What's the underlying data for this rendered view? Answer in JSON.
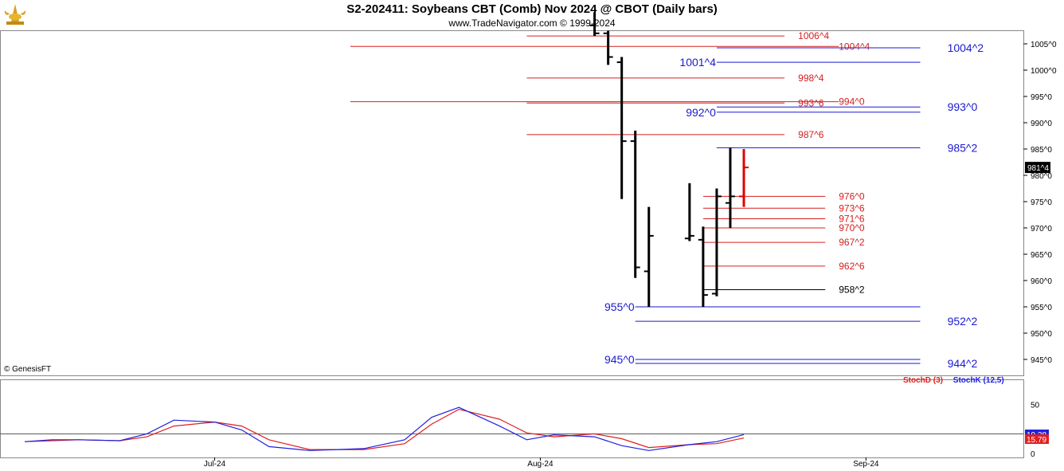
{
  "header": {
    "title": "S2-202411:  Soybeans CBT (Comb) Nov 2024 @ CBOT  (Daily bars)",
    "subtitle": "www.TradeNavigator.com © 1999-2024",
    "logo_icon": "golden-bull-icon"
  },
  "copyright": "© GenesisFT",
  "colors": {
    "red_level": "#d42020",
    "blue_level": "#1a1ad0",
    "bar_up": "#000000",
    "bar_last": "#e00000",
    "stoch_d": "#e02020",
    "stoch_k": "#2020e0"
  },
  "chart_data": [
    {
      "type": "ohlc",
      "title": "S2-202411:  Soybeans CBT (Comb) Nov 2024 @ CBOT  (Daily bars)",
      "price_unit": "cents, quarter-cent ticks written as ^",
      "ylim": [
        940,
        1009
      ],
      "y_ticks": [
        "1005^0",
        "1000^0",
        "995^0",
        "990^0",
        "985^0",
        "980^0",
        "975^0",
        "970^0",
        "965^0",
        "960^0",
        "955^0",
        "950^0",
        "945^0"
      ],
      "y_tick_values": [
        1005,
        1000,
        995,
        990,
        985,
        980,
        975,
        970,
        965,
        960,
        955,
        950,
        945
      ],
      "x_tick_labels": [
        "Jul-24",
        "Aug-24",
        "Sep-24"
      ],
      "last_price_label": "981^4",
      "last_price": 981.5,
      "bars": [
        {
          "date": "2024-08-12",
          "open": 1008.5,
          "high": 1011,
          "low": 1006.5,
          "close": 1007
        },
        {
          "date": "2024-08-13",
          "open": 1007,
          "high": 1007.5,
          "low": 1001,
          "close": 1002.5
        },
        {
          "date": "2024-08-14",
          "open": 1001.5,
          "high": 1002.5,
          "low": 975.5,
          "close": 986.5
        },
        {
          "date": "2024-08-15",
          "open": 986.5,
          "high": 988.5,
          "low": 960.5,
          "close": 962.5
        },
        {
          "date": "2024-08-16",
          "open": 961.75,
          "high": 974,
          "low": 955,
          "close": 968.5
        },
        {
          "date": "2024-08-19",
          "open": 968,
          "high": 978.5,
          "low": 967.5,
          "close": 968.5
        },
        {
          "date": "2024-08-20",
          "open": 967.75,
          "high": 970.25,
          "low": 955,
          "close": 957.25
        },
        {
          "date": "2024-08-21",
          "open": 957.5,
          "high": 977.5,
          "low": 957,
          "close": 976
        },
        {
          "date": "2024-08-22",
          "open": 974.75,
          "high": 985.25,
          "low": 970,
          "close": 976
        },
        {
          "date": "2024-08-23",
          "open": 976,
          "high": 985,
          "low": 974,
          "close": 981.5
        }
      ],
      "levels": [
        {
          "label": "1006^4",
          "value": 1006.5,
          "color": "red",
          "x_from": "2024-08-07",
          "x_to": "2024-08-26",
          "label_at": "2024-08-27"
        },
        {
          "label": "1004^4",
          "value": 1004.5,
          "color": "red",
          "x_from": "2024-07-25",
          "x_to": "2024-08-30",
          "label_at": "2024-08-30"
        },
        {
          "label": "1004^2",
          "value": 1004.25,
          "color": "blue",
          "x_from": "2024-08-21",
          "x_to": "2024-09-05",
          "label_at": "2024-09-07"
        },
        {
          "label": "1001^4",
          "value": 1001.5,
          "color": "blue",
          "x_from": "2024-08-21",
          "x_to": "2024-09-05",
          "label_at": "2024-08-19"
        },
        {
          "label": "998^4",
          "value": 998.5,
          "color": "red",
          "x_from": "2024-08-07",
          "x_to": "2024-08-26",
          "label_at": "2024-08-27"
        },
        {
          "label": "994^0",
          "value": 994,
          "color": "red",
          "x_from": "2024-07-25",
          "x_to": "2024-08-30",
          "label_at": "2024-08-30"
        },
        {
          "label": "993^6",
          "value": 993.75,
          "color": "red",
          "x_from": "2024-08-07",
          "x_to": "2024-08-26",
          "label_at": "2024-08-27"
        },
        {
          "label": "993^0",
          "value": 993,
          "color": "blue",
          "x_from": "2024-08-21",
          "x_to": "2024-09-05",
          "label_at": "2024-09-07"
        },
        {
          "label": "992^0",
          "value": 992,
          "color": "blue",
          "x_from": "2024-08-21",
          "x_to": "2024-09-05",
          "label_at": "2024-08-20"
        },
        {
          "label": "987^6",
          "value": 987.75,
          "color": "red",
          "x_from": "2024-08-07",
          "x_to": "2024-08-26",
          "label_at": "2024-08-27"
        },
        {
          "label": "985^2",
          "value": 985.25,
          "color": "blue",
          "x_from": "2024-08-21",
          "x_to": "2024-09-05",
          "label_at": "2024-09-07"
        },
        {
          "label": "976^0",
          "value": 976,
          "color": "red",
          "x_from": "2024-08-20",
          "x_to": "2024-08-29",
          "label_at": "2024-08-30"
        },
        {
          "label": "973^6",
          "value": 973.75,
          "color": "red",
          "x_from": "2024-08-20",
          "x_to": "2024-08-29",
          "label_at": "2024-08-30"
        },
        {
          "label": "971^6",
          "value": 971.75,
          "color": "red",
          "x_from": "2024-08-20",
          "x_to": "2024-08-29",
          "label_at": "2024-08-30"
        },
        {
          "label": "970^0",
          "value": 970,
          "color": "red",
          "x_from": "2024-08-20",
          "x_to": "2024-08-29",
          "label_at": "2024-08-30"
        },
        {
          "label": "967^2",
          "value": 967.25,
          "color": "red",
          "x_from": "2024-08-20",
          "x_to": "2024-08-29",
          "label_at": "2024-08-30"
        },
        {
          "label": "962^6",
          "value": 962.75,
          "color": "red",
          "x_from": "2024-08-20",
          "x_to": "2024-08-29",
          "label_at": "2024-08-30"
        },
        {
          "label": "958^2",
          "value": 958.25,
          "color": "black",
          "x_from": "2024-08-20",
          "x_to": "2024-08-29",
          "label_at": "2024-08-30"
        },
        {
          "label": "955^0",
          "value": 955,
          "color": "blue",
          "x_from": "2024-08-15",
          "x_to": "2024-09-05",
          "label_at": "2024-08-14"
        },
        {
          "label": "952^2",
          "value": 952.25,
          "color": "blue",
          "x_from": "2024-08-15",
          "x_to": "2024-09-05",
          "label_at": "2024-09-07"
        },
        {
          "label": "945^0",
          "value": 945,
          "color": "blue",
          "x_from": "2024-08-15",
          "x_to": "2024-09-05",
          "label_at": "2024-08-14"
        },
        {
          "label": "944^2",
          "value": 944.25,
          "color": "blue",
          "x_from": "2024-08-15",
          "x_to": "2024-09-05",
          "label_at": "2024-09-07"
        }
      ]
    },
    {
      "type": "line",
      "title": "",
      "ylim": [
        0,
        100
      ],
      "y_ticks": [
        "50",
        "0"
      ],
      "y_tick_values": [
        50,
        0
      ],
      "reference_line": 20,
      "series": [
        {
          "name": "StochD (3)",
          "color": "#e02020",
          "last_label": "15.79",
          "points": [
            [
              "2024-07-01",
              12
            ],
            [
              "2024-07-03",
              13
            ],
            [
              "2024-07-05",
              14
            ],
            [
              "2024-07-08",
              13
            ],
            [
              "2024-07-10",
              17
            ],
            [
              "2024-07-12",
              28
            ],
            [
              "2024-07-15",
              32
            ],
            [
              "2024-07-17",
              28
            ],
            [
              "2024-07-19",
              14
            ],
            [
              "2024-07-22",
              4
            ],
            [
              "2024-07-24",
              4
            ],
            [
              "2024-07-26",
              4
            ],
            [
              "2024-07-29",
              10
            ],
            [
              "2024-07-31",
              30
            ],
            [
              "2024-08-02",
              45
            ],
            [
              "2024-08-05",
              35
            ],
            [
              "2024-08-07",
              21
            ],
            [
              "2024-08-09",
              17
            ],
            [
              "2024-08-12",
              20
            ],
            [
              "2024-08-14",
              15
            ],
            [
              "2024-08-16",
              6
            ],
            [
              "2024-08-19",
              9
            ],
            [
              "2024-08-21",
              10
            ],
            [
              "2024-08-23",
              15.79
            ]
          ]
        },
        {
          "name": "StochK (12,5)",
          "color": "#2020e0",
          "last_label": "19.28",
          "points": [
            [
              "2024-07-01",
              12
            ],
            [
              "2024-07-03",
              14
            ],
            [
              "2024-07-05",
              14
            ],
            [
              "2024-07-08",
              13
            ],
            [
              "2024-07-10",
              20
            ],
            [
              "2024-07-12",
              34
            ],
            [
              "2024-07-15",
              32
            ],
            [
              "2024-07-17",
              24
            ],
            [
              "2024-07-19",
              7
            ],
            [
              "2024-07-22",
              3
            ],
            [
              "2024-07-24",
              4
            ],
            [
              "2024-07-26",
              5
            ],
            [
              "2024-07-29",
              14
            ],
            [
              "2024-07-31",
              37
            ],
            [
              "2024-08-02",
              47
            ],
            [
              "2024-08-05",
              28
            ],
            [
              "2024-08-07",
              14
            ],
            [
              "2024-08-09",
              19
            ],
            [
              "2024-08-12",
              17
            ],
            [
              "2024-08-14",
              8
            ],
            [
              "2024-08-16",
              3
            ],
            [
              "2024-08-19",
              9
            ],
            [
              "2024-08-21",
              12
            ],
            [
              "2024-08-23",
              19.28
            ]
          ]
        }
      ]
    }
  ]
}
